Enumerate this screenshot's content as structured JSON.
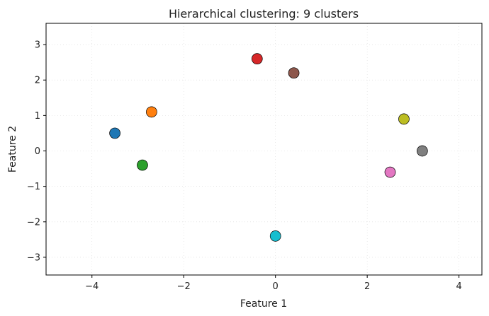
{
  "chart_data": {
    "type": "scatter",
    "title": "Hierarchical clustering: 9 clusters",
    "xlabel": "Feature 1",
    "ylabel": "Feature 2",
    "xlim": [
      -5,
      4.5
    ],
    "ylim": [
      -3.5,
      3.6
    ],
    "xticks": [
      -4,
      -2,
      0,
      2,
      4
    ],
    "yticks": [
      -3,
      -2,
      -1,
      0,
      1,
      2,
      3
    ],
    "grid": true,
    "points": [
      {
        "x": -3.5,
        "y": 0.5,
        "color": "#1f77b4"
      },
      {
        "x": -2.7,
        "y": 1.1,
        "color": "#ff7f0e"
      },
      {
        "x": -2.9,
        "y": -0.4,
        "color": "#2ca02c"
      },
      {
        "x": -0.4,
        "y": 2.6,
        "color": "#d62728"
      },
      {
        "x": 0.4,
        "y": 2.2,
        "color": "#8c564b"
      },
      {
        "x": 0.0,
        "y": -2.4,
        "color": "#17becf"
      },
      {
        "x": 2.5,
        "y": -0.6,
        "color": "#e377c2"
      },
      {
        "x": 2.8,
        "y": 0.9,
        "color": "#bcbd22"
      },
      {
        "x": 3.2,
        "y": 0.0,
        "color": "#7f7f7f"
      }
    ]
  }
}
